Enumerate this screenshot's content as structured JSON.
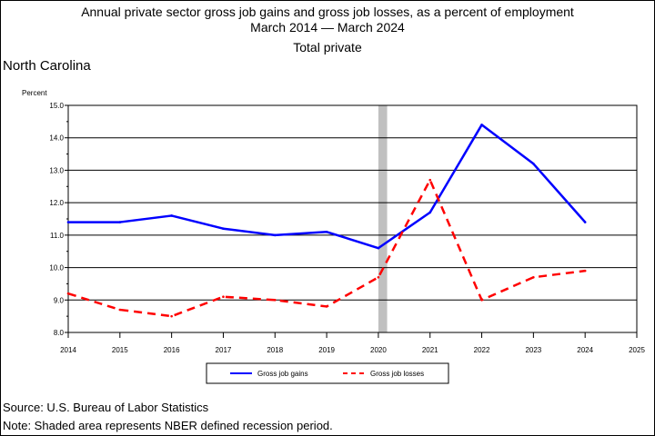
{
  "chart_data": {
    "type": "line",
    "title_lines": [
      "Annual private sector gross job gains and gross job losses, as a percent of employment",
      "March 2014 — March 2024",
      "Total private"
    ],
    "region": "North Carolina",
    "ylabel": "Percent",
    "xlabel": "",
    "x": [
      2014,
      2015,
      2016,
      2017,
      2018,
      2019,
      2020,
      2021,
      2022,
      2023,
      2024
    ],
    "xlim": [
      2014,
      2025
    ],
    "ylim": [
      8.0,
      15.0
    ],
    "x_ticks": [
      "2014",
      "2015",
      "2016",
      "2017",
      "2018",
      "2019",
      "2020",
      "2021",
      "2022",
      "2023",
      "2024",
      "2025"
    ],
    "y_ticks": [
      "8.0",
      "9.0",
      "10.0",
      "11.0",
      "12.0",
      "13.0",
      "14.0",
      "15.0"
    ],
    "grid": "horizontal",
    "legend_placement": "bottom",
    "recession": {
      "start": 2020.0,
      "end": 2020.17,
      "color": "#c0c0c0"
    },
    "series": [
      {
        "name": "Gross job gains",
        "color": "#0000ff",
        "style": "solid",
        "values": [
          11.4,
          11.4,
          11.6,
          11.2,
          11.0,
          11.1,
          10.6,
          11.7,
          14.4,
          13.2,
          11.4
        ]
      },
      {
        "name": "Gross job losses",
        "color": "#ff0000",
        "style": "dashed",
        "values": [
          9.2,
          8.7,
          8.5,
          9.1,
          9.0,
          8.8,
          9.7,
          12.7,
          9.0,
          9.7,
          9.9
        ]
      }
    ]
  },
  "footer": {
    "source": "Source: U.S. Bureau of Labor Statistics",
    "note": "Note: Shaded area represents NBER defined recession period."
  }
}
